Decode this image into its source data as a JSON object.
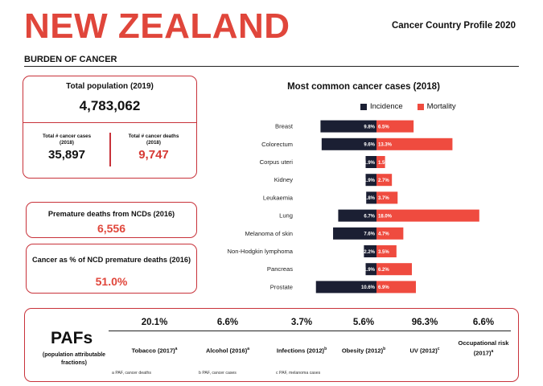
{
  "header": {
    "country": "NEW ZEALAND",
    "profile_title": "Cancer Country Profile 2020",
    "section": "BURDEN OF CANCER"
  },
  "population": {
    "label": "Total population (2019)",
    "value": "4,783,062",
    "cases_label_line1": "Total # cancer cases",
    "cases_label_line2": "(2018)",
    "cases_value": "35,897",
    "deaths_label_line1": "Total # cancer deaths",
    "deaths_label_line2": "(2018)",
    "deaths_value": "9,747"
  },
  "ncd": {
    "label": "Premature deaths from NCDs (2016)",
    "value": "6,556"
  },
  "cancer_pct": {
    "label": "Cancer as % of NCD premature deaths (2016)",
    "value": "51.0%"
  },
  "chart_data": {
    "type": "bar",
    "title": "Most common cancer cases (2018)",
    "legend_position": "top-right",
    "categories": [
      "Breast",
      "Colorectum",
      "Corpus uteri",
      "Kidney",
      "Leukaemia",
      "Lung",
      "Melanoma of skin",
      "Non-Hodgkin lymphoma",
      "Pancreas",
      "Prostate"
    ],
    "series": [
      {
        "name": "Incidence",
        "color": "#1b1f33",
        "direction": "left",
        "values": [
          9.8,
          9.6,
          1.9,
          1.9,
          1.8,
          6.7,
          7.6,
          2.2,
          1.9,
          10.6
        ],
        "labels": [
          "9.8%",
          "9.6%",
          "1.9%",
          "1.9%",
          "1.8%",
          "6.7%",
          "7.6%",
          "2.2%",
          "1.9%",
          "10.6%"
        ]
      },
      {
        "name": "Mortality",
        "color": "#ef4b3f",
        "direction": "right",
        "values": [
          6.5,
          13.3,
          1.5,
          2.7,
          3.7,
          18.0,
          4.7,
          3.5,
          6.2,
          6.9
        ],
        "labels": [
          "6.5%",
          "13.3%",
          "1.5%",
          "2.7%",
          "3.7%",
          "18.0%",
          "4.7%",
          "3.5%",
          "6.2%",
          "6.9%"
        ]
      }
    ]
  },
  "pafs": {
    "title": "PAFs",
    "subtitle_line1": "(population attributable",
    "subtitle_line2": "fractions)",
    "items": [
      {
        "value": "20.1%",
        "label": "Tobacco (2017)",
        "note": "a"
      },
      {
        "value": "6.6%",
        "label": "Alcohol (2016)",
        "note": "a"
      },
      {
        "value": "3.7%",
        "label": "Infections (2012)",
        "note": "b"
      },
      {
        "value": "5.6%",
        "label": "Obesity (2012)",
        "note": "b"
      },
      {
        "value": "96.3%",
        "label": "UV (2012)",
        "note": "c"
      },
      {
        "value": "6.6%",
        "label_line1": "Occupational risk",
        "label_line2": "(2017)",
        "note": "a"
      }
    ],
    "footnotes": [
      "a PAF, cancer deaths",
      "b PAF, cancer cases",
      "c PAF, melanoma cases"
    ]
  }
}
